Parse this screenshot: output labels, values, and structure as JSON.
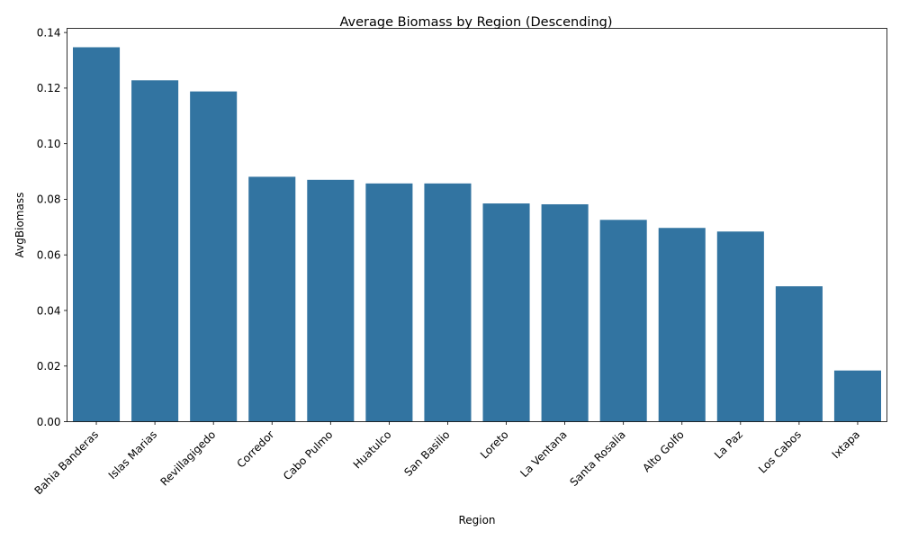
{
  "chart_data": {
    "type": "bar",
    "title": "Average Biomass by Region (Descending)",
    "xlabel": "Region",
    "ylabel": "AvgBiomass",
    "categories": [
      "Bahia Banderas",
      "Islas Marias",
      "Revillagigedo",
      "Corredor",
      "Cabo Pulmo",
      "Huatulco",
      "San Basilio",
      "Loreto",
      "La Ventana",
      "Santa Rosalia",
      "Alto Golfo",
      "La Paz",
      "Los Cabos",
      "Ixtapa"
    ],
    "values": [
      0.1347,
      0.1228,
      0.1188,
      0.0881,
      0.087,
      0.0857,
      0.0857,
      0.0785,
      0.0782,
      0.0726,
      0.0697,
      0.0684,
      0.0487,
      0.0184
    ],
    "ylim": [
      0,
      0.1415
    ],
    "yticks": [
      0.0,
      0.02,
      0.04,
      0.06,
      0.08,
      0.1,
      0.12,
      0.14
    ],
    "ytick_labels": [
      "0.00",
      "0.02",
      "0.04",
      "0.06",
      "0.08",
      "0.10",
      "0.12",
      "0.14"
    ],
    "bar_color": "#3274a1",
    "grid": false,
    "legend": "none"
  }
}
